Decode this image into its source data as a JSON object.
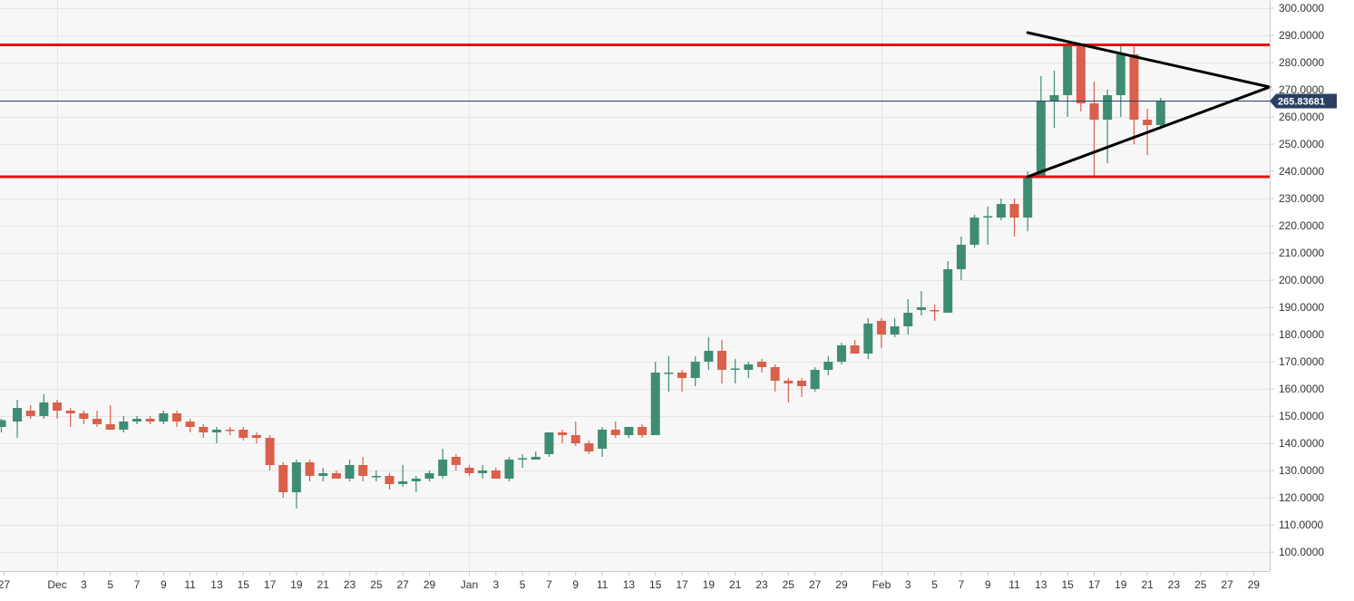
{
  "chart_data": {
    "type": "candlestick",
    "title": "",
    "xlabel": "",
    "ylabel": "",
    "ylim": [
      93,
      303
    ],
    "grid": true,
    "colors": {
      "up": "#3e8c74",
      "down": "#d9604b",
      "resistance": "#e11414",
      "support": "#e11414",
      "triangle": "#000000",
      "current_price_line": "#2b3f63",
      "price_tag": "#2b3f63",
      "background": "#f7f7f7",
      "grid": "#e4e4e4"
    },
    "y_ticks": [
      {
        "value": 100,
        "label": "100.0000"
      },
      {
        "value": 110,
        "label": "110.0000"
      },
      {
        "value": 120,
        "label": "120.0000"
      },
      {
        "value": 130,
        "label": "130.0000"
      },
      {
        "value": 140,
        "label": "140.0000"
      },
      {
        "value": 150,
        "label": "150.0000"
      },
      {
        "value": 160,
        "label": "160.0000"
      },
      {
        "value": 170,
        "label": "170.0000"
      },
      {
        "value": 180,
        "label": "180.0000"
      },
      {
        "value": 190,
        "label": "190.0000"
      },
      {
        "value": 200,
        "label": "200.0000"
      },
      {
        "value": 210,
        "label": "210.0000"
      },
      {
        "value": 220,
        "label": "220.0000"
      },
      {
        "value": 230,
        "label": "230.0000"
      },
      {
        "value": 240,
        "label": "240.0000"
      },
      {
        "value": 250,
        "label": "250.0000"
      },
      {
        "value": 260,
        "label": "260.0000"
      },
      {
        "value": 270,
        "label": "270.0000"
      },
      {
        "value": 280,
        "label": "280.0000"
      },
      {
        "value": 290,
        "label": "290.0000"
      },
      {
        "value": 300,
        "label": "300.0000"
      }
    ],
    "x_ticks": [
      {
        "day": 0,
        "label": "27"
      },
      {
        "day": 4,
        "label": "Dec"
      },
      {
        "day": 6,
        "label": "3"
      },
      {
        "day": 8,
        "label": "5"
      },
      {
        "day": 10,
        "label": "7"
      },
      {
        "day": 12,
        "label": "9"
      },
      {
        "day": 14,
        "label": "11"
      },
      {
        "day": 16,
        "label": "13"
      },
      {
        "day": 18,
        "label": "15"
      },
      {
        "day": 20,
        "label": "17"
      },
      {
        "day": 22,
        "label": "19"
      },
      {
        "day": 24,
        "label": "21"
      },
      {
        "day": 26,
        "label": "23"
      },
      {
        "day": 28,
        "label": "25"
      },
      {
        "day": 30,
        "label": "27"
      },
      {
        "day": 32,
        "label": "29"
      },
      {
        "day": 35,
        "label": "Jan"
      },
      {
        "day": 37,
        "label": "3"
      },
      {
        "day": 39,
        "label": "5"
      },
      {
        "day": 41,
        "label": "7"
      },
      {
        "day": 43,
        "label": "9"
      },
      {
        "day": 45,
        "label": "11"
      },
      {
        "day": 47,
        "label": "13"
      },
      {
        "day": 49,
        "label": "15"
      },
      {
        "day": 51,
        "label": "17"
      },
      {
        "day": 53,
        "label": "19"
      },
      {
        "day": 55,
        "label": "21"
      },
      {
        "day": 57,
        "label": "23"
      },
      {
        "day": 59,
        "label": "25"
      },
      {
        "day": 61,
        "label": "27"
      },
      {
        "day": 63,
        "label": "29"
      },
      {
        "day": 66,
        "label": "Feb"
      },
      {
        "day": 68,
        "label": "3"
      },
      {
        "day": 70,
        "label": "5"
      },
      {
        "day": 72,
        "label": "7"
      },
      {
        "day": 74,
        "label": "9"
      },
      {
        "day": 76,
        "label": "11"
      },
      {
        "day": 78,
        "label": "13"
      },
      {
        "day": 80,
        "label": "15"
      },
      {
        "day": 82,
        "label": "17"
      },
      {
        "day": 84,
        "label": "19"
      },
      {
        "day": 86,
        "label": "21"
      },
      {
        "day": 88,
        "label": "23"
      },
      {
        "day": 90,
        "label": "25"
      },
      {
        "day": 92,
        "label": "27"
      },
      {
        "day": 94,
        "label": "29"
      }
    ],
    "x_domain": [
      -0.3,
      95.2
    ],
    "month_separators": [
      4,
      35,
      66
    ],
    "candles": [
      {
        "day": -0.2,
        "o": 146.0,
        "h": 149.0,
        "l": 144.0,
        "c": 148.5
      },
      {
        "day": 1,
        "o": 148,
        "h": 156,
        "l": 142,
        "c": 153
      },
      {
        "day": 2,
        "o": 152,
        "h": 154,
        "l": 149,
        "c": 150
      },
      {
        "day": 3,
        "o": 150,
        "h": 158,
        "l": 149,
        "c": 155
      },
      {
        "day": 4,
        "o": 155,
        "h": 156,
        "l": 149,
        "c": 152
      },
      {
        "day": 5,
        "o": 152,
        "h": 153,
        "l": 146,
        "c": 151
      },
      {
        "day": 6,
        "o": 151,
        "h": 152,
        "l": 147,
        "c": 149
      },
      {
        "day": 7,
        "o": 149,
        "h": 152,
        "l": 146,
        "c": 147
      },
      {
        "day": 8,
        "o": 147,
        "h": 154,
        "l": 145,
        "c": 145
      },
      {
        "day": 9,
        "o": 145,
        "h": 150,
        "l": 144,
        "c": 148
      },
      {
        "day": 10,
        "o": 148,
        "h": 150,
        "l": 147,
        "c": 149
      },
      {
        "day": 11,
        "o": 149,
        "h": 150,
        "l": 147,
        "c": 148
      },
      {
        "day": 12,
        "o": 148,
        "h": 152,
        "l": 147,
        "c": 151
      },
      {
        "day": 13,
        "o": 151,
        "h": 152,
        "l": 146,
        "c": 148
      },
      {
        "day": 14,
        "o": 148,
        "h": 149,
        "l": 144,
        "c": 146
      },
      {
        "day": 15,
        "o": 146,
        "h": 147,
        "l": 142,
        "c": 144
      },
      {
        "day": 16,
        "o": 144,
        "h": 146,
        "l": 140,
        "c": 145
      },
      {
        "day": 17,
        "o": 145,
        "h": 146,
        "l": 143,
        "c": 144.5
      },
      {
        "day": 18,
        "o": 145,
        "h": 146,
        "l": 141,
        "c": 142
      },
      {
        "day": 19,
        "o": 143,
        "h": 144,
        "l": 140,
        "c": 142
      },
      {
        "day": 20,
        "o": 142,
        "h": 143,
        "l": 130,
        "c": 132
      },
      {
        "day": 21,
        "o": 132,
        "h": 133,
        "l": 120,
        "c": 122
      },
      {
        "day": 22,
        "o": 122,
        "h": 134,
        "l": 116,
        "c": 133
      },
      {
        "day": 23,
        "o": 133,
        "h": 134,
        "l": 126,
        "c": 128
      },
      {
        "day": 24,
        "o": 128,
        "h": 131,
        "l": 126,
        "c": 129
      },
      {
        "day": 25,
        "o": 129,
        "h": 130,
        "l": 127,
        "c": 127
      },
      {
        "day": 26,
        "o": 127,
        "h": 134,
        "l": 126,
        "c": 132
      },
      {
        "day": 27,
        "o": 132,
        "h": 135,
        "l": 126,
        "c": 128
      },
      {
        "day": 28,
        "o": 128,
        "h": 130,
        "l": 126,
        "c": 128
      },
      {
        "day": 29,
        "o": 128,
        "h": 129,
        "l": 123,
        "c": 125
      },
      {
        "day": 30,
        "o": 125,
        "h": 132,
        "l": 124,
        "c": 126
      },
      {
        "day": 31,
        "o": 126,
        "h": 128,
        "l": 122,
        "c": 127
      },
      {
        "day": 32,
        "o": 127,
        "h": 130,
        "l": 126,
        "c": 129
      },
      {
        "day": 33,
        "o": 128,
        "h": 138,
        "l": 127,
        "c": 134
      },
      {
        "day": 34,
        "o": 135,
        "h": 136,
        "l": 130,
        "c": 132
      },
      {
        "day": 35,
        "o": 131,
        "h": 132,
        "l": 128,
        "c": 129
      },
      {
        "day": 36,
        "o": 129,
        "h": 132,
        "l": 127,
        "c": 130
      },
      {
        "day": 37,
        "o": 130,
        "h": 131,
        "l": 127,
        "c": 127
      },
      {
        "day": 38,
        "o": 127,
        "h": 135,
        "l": 126,
        "c": 134
      },
      {
        "day": 39,
        "o": 134,
        "h": 136,
        "l": 131,
        "c": 134.5
      },
      {
        "day": 40,
        "o": 134,
        "h": 137,
        "l": 134,
        "c": 135
      },
      {
        "day": 41,
        "o": 136,
        "h": 144,
        "l": 135,
        "c": 144
      },
      {
        "day": 42,
        "o": 144,
        "h": 145,
        "l": 140,
        "c": 143
      },
      {
        "day": 43,
        "o": 143,
        "h": 148,
        "l": 139,
        "c": 140
      },
      {
        "day": 44,
        "o": 140,
        "h": 141,
        "l": 136,
        "c": 137
      },
      {
        "day": 45,
        "o": 138,
        "h": 146,
        "l": 135,
        "c": 145
      },
      {
        "day": 46,
        "o": 145,
        "h": 148,
        "l": 142,
        "c": 143
      },
      {
        "day": 47,
        "o": 143,
        "h": 146,
        "l": 142,
        "c": 146
      },
      {
        "day": 48,
        "o": 146,
        "h": 147,
        "l": 142,
        "c": 143
      },
      {
        "day": 49,
        "o": 143,
        "h": 170,
        "l": 143,
        "c": 166
      },
      {
        "day": 50,
        "o": 166,
        "h": 172,
        "l": 159,
        "c": 166
      },
      {
        "day": 51,
        "o": 166,
        "h": 167,
        "l": 159,
        "c": 164
      },
      {
        "day": 52,
        "o": 164,
        "h": 172,
        "l": 161,
        "c": 170
      },
      {
        "day": 53,
        "o": 170,
        "h": 179,
        "l": 167,
        "c": 174
      },
      {
        "day": 54,
        "o": 174,
        "h": 178,
        "l": 162,
        "c": 167
      },
      {
        "day": 55,
        "o": 167,
        "h": 171,
        "l": 162,
        "c": 167.5
      },
      {
        "day": 56,
        "o": 167,
        "h": 170,
        "l": 164,
        "c": 169
      },
      {
        "day": 57,
        "o": 170,
        "h": 171,
        "l": 166,
        "c": 168
      },
      {
        "day": 58,
        "o": 168,
        "h": 169,
        "l": 159,
        "c": 163
      },
      {
        "day": 59,
        "o": 163,
        "h": 164,
        "l": 155,
        "c": 162
      },
      {
        "day": 60,
        "o": 163,
        "h": 164,
        "l": 157,
        "c": 161
      },
      {
        "day": 61,
        "o": 160,
        "h": 168,
        "l": 159,
        "c": 167
      },
      {
        "day": 62,
        "o": 167,
        "h": 172,
        "l": 165,
        "c": 170
      },
      {
        "day": 63,
        "o": 170,
        "h": 177,
        "l": 169,
        "c": 176
      },
      {
        "day": 64,
        "o": 176,
        "h": 178,
        "l": 173,
        "c": 173
      },
      {
        "day": 65,
        "o": 173,
        "h": 186,
        "l": 171,
        "c": 184
      },
      {
        "day": 66,
        "o": 185,
        "h": 186,
        "l": 175,
        "c": 180
      },
      {
        "day": 67,
        "o": 180,
        "h": 186,
        "l": 179,
        "c": 183
      },
      {
        "day": 68,
        "o": 183,
        "h": 193,
        "l": 180,
        "c": 188
      },
      {
        "day": 69,
        "o": 189,
        "h": 196,
        "l": 187,
        "c": 190
      },
      {
        "day": 70,
        "o": 189,
        "h": 191,
        "l": 185,
        "c": 188.5
      },
      {
        "day": 71,
        "o": 188,
        "h": 207,
        "l": 188,
        "c": 204
      },
      {
        "day": 72,
        "o": 204,
        "h": 216,
        "l": 200,
        "c": 213
      },
      {
        "day": 73,
        "o": 213,
        "h": 224,
        "l": 212,
        "c": 223
      },
      {
        "day": 74,
        "o": 223,
        "h": 227,
        "l": 213,
        "c": 223.5
      },
      {
        "day": 75,
        "o": 223,
        "h": 230,
        "l": 222,
        "c": 228
      },
      {
        "day": 76,
        "o": 228,
        "h": 230,
        "l": 216,
        "c": 223
      },
      {
        "day": 77,
        "o": 223,
        "h": 240,
        "l": 218,
        "c": 238
      },
      {
        "day": 78,
        "o": 238,
        "h": 275,
        "l": 238,
        "c": 266
      },
      {
        "day": 79,
        "o": 266,
        "h": 277,
        "l": 256,
        "c": 268
      },
      {
        "day": 80,
        "o": 268,
        "h": 288,
        "l": 260,
        "c": 286
      },
      {
        "day": 81,
        "o": 286,
        "h": 287,
        "l": 262,
        "c": 265
      },
      {
        "day": 82,
        "o": 265,
        "h": 273,
        "l": 238,
        "c": 259
      },
      {
        "day": 83,
        "o": 259,
        "h": 270,
        "l": 243,
        "c": 268
      },
      {
        "day": 84,
        "o": 268,
        "h": 286,
        "l": 260,
        "c": 283
      },
      {
        "day": 85,
        "o": 283,
        "h": 287,
        "l": 250,
        "c": 259
      },
      {
        "day": 86,
        "o": 259,
        "h": 263,
        "l": 246,
        "c": 257
      },
      {
        "day": 87,
        "o": 257,
        "h": 267,
        "l": 256,
        "c": 265.8
      }
    ],
    "horizontal_lines": [
      {
        "value": 286.5
      },
      {
        "value": 238.0
      }
    ],
    "current_price": {
      "value": 265.83681,
      "label": "265.83681"
    },
    "triangle_lines": [
      {
        "x1": 77,
        "y1": 291.0,
        "x2": 95.2,
        "y2": 271.0
      },
      {
        "x1": 77,
        "y1": 238.0,
        "x2": 95.2,
        "y2": 271.0
      }
    ]
  }
}
